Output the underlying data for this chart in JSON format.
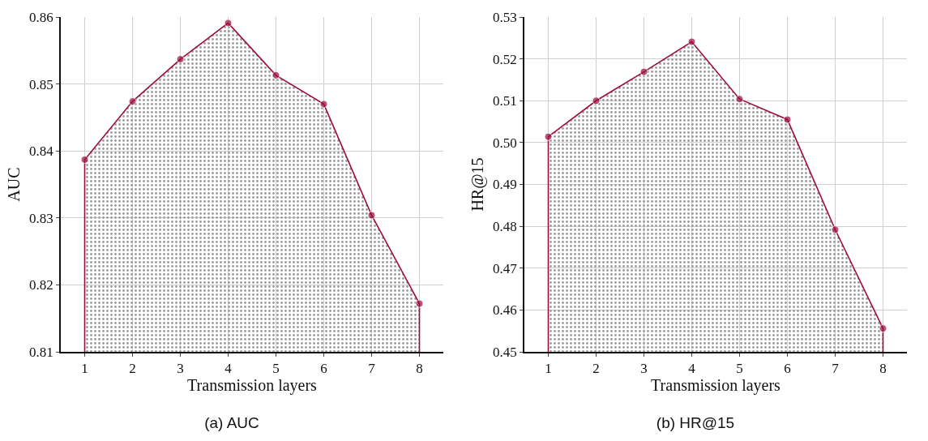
{
  "chart_data": [
    {
      "type": "area",
      "title": "(a) AUC",
      "xlabel": "Transmission layers",
      "ylabel": "AUC",
      "x": [
        1,
        2,
        3,
        4,
        5,
        6,
        7,
        8
      ],
      "xlim": [
        0.5,
        8.5
      ],
      "xticks": [
        1,
        2,
        3,
        4,
        5,
        6,
        7,
        8
      ],
      "ylim": [
        0.81,
        0.86
      ],
      "yticks": [
        0.81,
        0.82,
        0.83,
        0.84,
        0.85,
        0.86
      ],
      "grid": true,
      "marker": "circle",
      "series": [
        {
          "color": "#9b0d3e",
          "values": [
            0.8387,
            0.8474,
            0.8537,
            0.8591,
            0.8513,
            0.847,
            0.8304,
            0.8172
          ]
        }
      ]
    },
    {
      "type": "area",
      "title": "(b) HR@15",
      "xlabel": "Transmission layers",
      "ylabel": "HR@15",
      "x": [
        1,
        2,
        3,
        4,
        5,
        6,
        7,
        8
      ],
      "xlim": [
        0.5,
        8.5
      ],
      "xticks": [
        1,
        2,
        3,
        4,
        5,
        6,
        7,
        8
      ],
      "ylim": [
        0.45,
        0.53
      ],
      "yticks": [
        0.45,
        0.46,
        0.47,
        0.48,
        0.49,
        {
          "value": 0.5,
          "label": "0.50"
        },
        0.51,
        0.52,
        0.53
      ],
      "grid": true,
      "marker": "circle",
      "series": [
        {
          "color": "#9b0d3e",
          "values": [
            0.5014,
            0.51,
            0.5169,
            0.5241,
            0.5104,
            0.5055,
            0.4792,
            0.4556
          ]
        }
      ]
    }
  ]
}
